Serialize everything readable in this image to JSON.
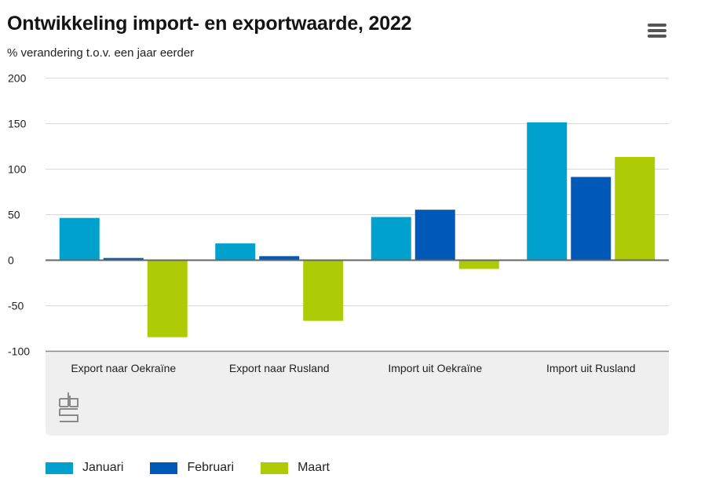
{
  "header": {
    "title": "Ontwikkeling import- en exportwaarde, 2022",
    "subtitle": "% verandering t.o.v. een jaar eerder",
    "menu_icon": "hamburger-menu-icon"
  },
  "branding": {
    "logo": "cbs-logo-icon"
  },
  "colors": {
    "januari": "#00a1cd",
    "februari": "#0058b8",
    "maart": "#afcb05",
    "gridline": "#d9d9d9",
    "baseline": "#666666",
    "axis_text": "#222222"
  },
  "chart_data": {
    "type": "bar",
    "title": "Ontwikkeling import- en exportwaarde, 2022",
    "subtitle": "% verandering t.o.v. een jaar eerder",
    "xlabel": "",
    "ylabel": "% verandering t.o.v. een jaar eerder",
    "ylim": [
      -100,
      200
    ],
    "yticks": [
      "200",
      "150",
      "100",
      "50",
      "0",
      "-50",
      "-100"
    ],
    "ytick_values": [
      200,
      150,
      100,
      50,
      0,
      -50,
      -100
    ],
    "grid": true,
    "legend_position": "bottom",
    "categories": [
      "Export naar Oekraïne",
      "Export naar Rusland",
      "Import uit Oekraïne",
      "Import uit Rusland"
    ],
    "series": [
      {
        "name": "Januari",
        "values": [
          46,
          18,
          47,
          151
        ]
      },
      {
        "name": "Februari",
        "values": [
          2,
          4,
          55,
          91
        ]
      },
      {
        "name": "Maart",
        "values": [
          -85,
          -67,
          -10,
          113
        ]
      }
    ]
  }
}
